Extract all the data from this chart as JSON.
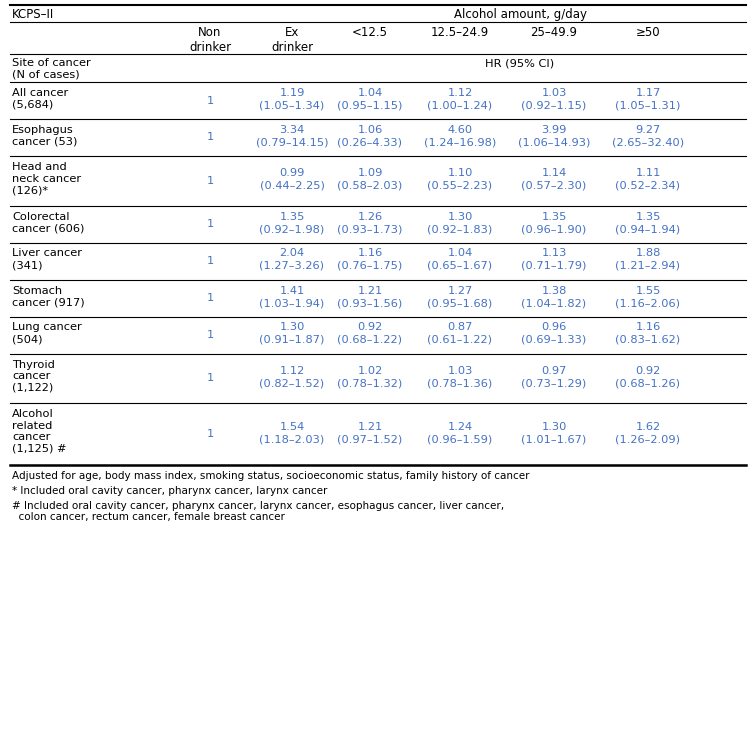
{
  "title_left": "KCPS–II",
  "title_right": "Alcohol amount, g/day",
  "col_headers": [
    "Non\ndrinker",
    "Ex\ndrinker",
    "<12.5",
    "12.5–24.9",
    "25–49.9",
    "≥50"
  ],
  "subheader_left": "Site of cancer\n(N of cases)",
  "subheader_right": "HR (95% CI)",
  "rows": [
    {
      "label": "All cancer\n(5,684)",
      "values": [
        "1",
        "1.19\n(1.05–1.34)",
        "1.04\n(0.95–1.15)",
        "1.12\n(1.00–1.24)",
        "1.03\n(0.92–1.15)",
        "1.17\n(1.05–1.31)"
      ],
      "n_label_lines": 2,
      "n_val_lines": 2
    },
    {
      "label": "Esophagus\ncancer (53)",
      "values": [
        "1",
        "3.34\n(0.79–14.15)",
        "1.06\n(0.26–4.33)",
        "4.60\n(1.24–16.98)",
        "3.99\n(1.06–14.93)",
        "9.27\n(2.65–32.40)"
      ],
      "n_label_lines": 2,
      "n_val_lines": 2
    },
    {
      "label": "Head and\nneck cancer\n(126)*",
      "values": [
        "1",
        "0.99\n(0.44–2.25)",
        "1.09\n(0.58–2.03)",
        "1.10\n(0.55–2.23)",
        "1.14\n(0.57–2.30)",
        "1.11\n(0.52–2.34)"
      ],
      "n_label_lines": 3,
      "n_val_lines": 2
    },
    {
      "label": "Colorectal\ncancer (606)",
      "values": [
        "1",
        "1.35\n(0.92–1.98)",
        "1.26\n(0.93–1.73)",
        "1.30\n(0.92–1.83)",
        "1.35\n(0.96–1.90)",
        "1.35\n(0.94–1.94)"
      ],
      "n_label_lines": 2,
      "n_val_lines": 2
    },
    {
      "label": "Liver cancer\n(341)",
      "values": [
        "1",
        "2.04\n(1.27–3.26)",
        "1.16\n(0.76–1.75)",
        "1.04\n(0.65–1.67)",
        "1.13\n(0.71–1.79)",
        "1.88\n(1.21–2.94)"
      ],
      "n_label_lines": 2,
      "n_val_lines": 2
    },
    {
      "label": "Stomach\ncancer (917)",
      "values": [
        "1",
        "1.41\n(1.03–1.94)",
        "1.21\n(0.93–1.56)",
        "1.27\n(0.95–1.68)",
        "1.38\n(1.04–1.82)",
        "1.55\n(1.16–2.06)"
      ],
      "n_label_lines": 2,
      "n_val_lines": 2
    },
    {
      "label": "Lung cancer\n(504)",
      "values": [
        "1",
        "1.30\n(0.91–1.87)",
        "0.92\n(0.68–1.22)",
        "0.87\n(0.61–1.22)",
        "0.96\n(0.69–1.33)",
        "1.16\n(0.83–1.62)"
      ],
      "n_label_lines": 2,
      "n_val_lines": 2
    },
    {
      "label": "Thyroid\ncancer\n(1,122)",
      "values": [
        "1",
        "1.12\n(0.82–1.52)",
        "1.02\n(0.78–1.32)",
        "1.03\n(0.78–1.36)",
        "0.97\n(0.73–1.29)",
        "0.92\n(0.68–1.26)"
      ],
      "n_label_lines": 3,
      "n_val_lines": 2
    },
    {
      "label": "Alcohol\nrelated\ncancer\n(1,125) #",
      "values": [
        "1",
        "1.54\n(1.18–2.03)",
        "1.21\n(0.97–1.52)",
        "1.24\n(0.96–1.59)",
        "1.30\n(1.01–1.67)",
        "1.62\n(1.26–2.09)"
      ],
      "n_label_lines": 4,
      "n_val_lines": 2
    }
  ],
  "footnotes": [
    "Adjusted for age, body mass index, smoking status, socioeconomic status, family history of cancer",
    "* Included oral cavity cancer, pharynx cancer, larynx cancer",
    "# Included oral cavity cancer, pharynx cancer, larynx cancer, esophagus cancer, liver cancer,\n  colon cancer, rectum cancer, female breast cancer"
  ],
  "blue": "#4472C4",
  "black": "#000000",
  "bg": "#FFFFFF",
  "fs_title": 8.5,
  "fs_header": 8.5,
  "fs_body": 8.2,
  "fs_footnote": 7.5
}
